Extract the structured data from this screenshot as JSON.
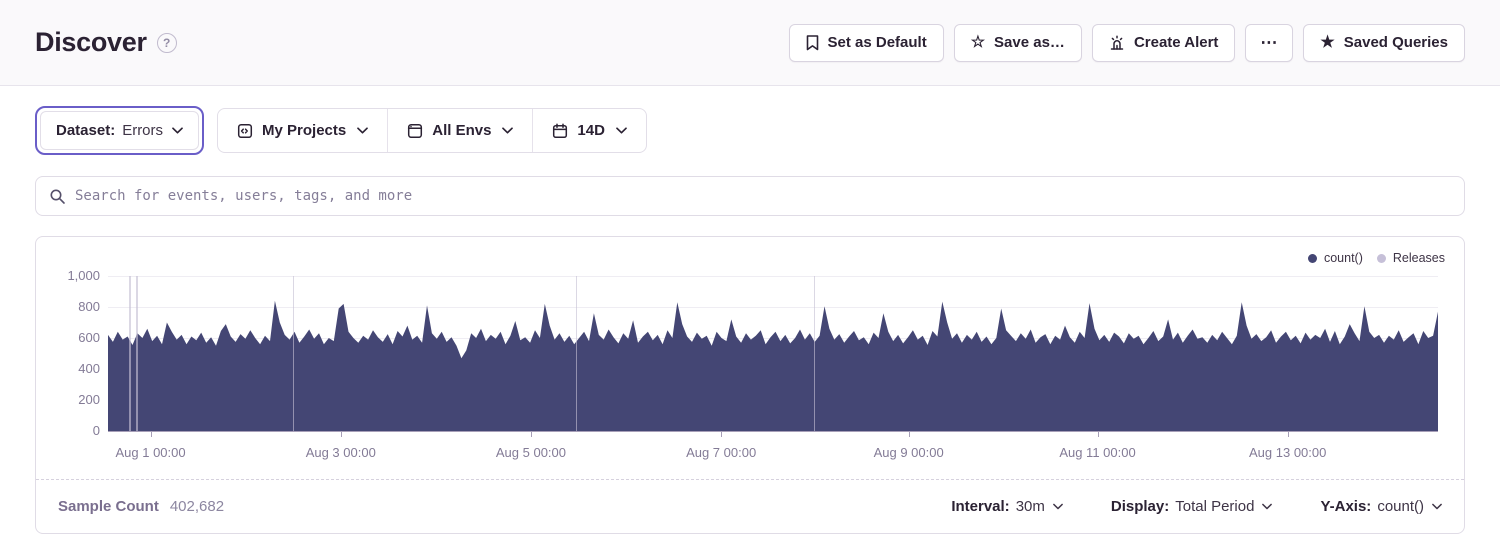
{
  "header": {
    "title": "Discover",
    "help_icon": "question-mark",
    "buttons": [
      {
        "label": "Set as Default",
        "icon": "bookmark-icon"
      },
      {
        "label": "Save as…",
        "icon": "star-outline-icon"
      },
      {
        "label": "Create Alert",
        "icon": "siren-icon"
      },
      {
        "label": "⋯",
        "icon": "ellipsis-icon"
      },
      {
        "label": "Saved Queries",
        "icon": "star-filled-icon"
      }
    ]
  },
  "filters": {
    "dataset": {
      "label": "Dataset:",
      "value": "Errors",
      "highlight_color": "#6a5ec8"
    },
    "projects": {
      "label": "My Projects",
      "icon": "project-icon"
    },
    "environments": {
      "label": "All Envs",
      "icon": "window-icon"
    },
    "date_range": {
      "label": "14D",
      "icon": "calendar-icon"
    }
  },
  "search": {
    "placeholder": "Search for events, users, tags, and more",
    "icon": "search-icon"
  },
  "chart_data": {
    "type": "area",
    "title": "",
    "xlabel": "",
    "ylabel": "",
    "ylim": [
      0,
      1000
    ],
    "grid": true,
    "legend_position": "top-right",
    "legend": [
      {
        "label": "count()",
        "color": "#444674"
      },
      {
        "label": "Releases",
        "color": "#c6c0d8"
      }
    ],
    "y_ticks": [
      "0",
      "200",
      "400",
      "600",
      "800",
      "1,000"
    ],
    "x_ticks": {
      "labels": [
        "Aug 1 00:00",
        "Aug 3 00:00",
        "Aug 5 00:00",
        "Aug 7 00:00",
        "Aug 9 00:00",
        "Aug 11 00:00",
        "Aug 13 00:00"
      ],
      "positions_pct": [
        3.2,
        17.5,
        31.8,
        46.1,
        60.2,
        74.4,
        88.7
      ]
    },
    "releases_pct": [
      1.6,
      2.1,
      13.9,
      35.2,
      53.1
    ],
    "series": [
      {
        "name": "count()",
        "color": "#444674",
        "values": [
          620,
          575,
          640,
          590,
          610,
          555,
          630,
          600,
          660,
          580,
          615,
          560,
          700,
          640,
          590,
          620,
          560,
          610,
          585,
          635,
          570,
          605,
          550,
          645,
          690,
          610,
          575,
          625,
          595,
          650,
          600,
          560,
          615,
          580,
          840,
          700,
          620,
          590,
          640,
          570,
          610,
          655,
          595,
          630,
          560,
          600,
          580,
          790,
          820,
          640,
          600,
          570,
          615,
          590,
          650,
          605,
          575,
          625,
          560,
          645,
          610,
          680,
          590,
          615,
          570,
          810,
          630,
          595,
          640,
          575,
          605,
          550,
          470,
          520,
          630,
          600,
          660,
          580,
          620,
          595,
          640,
          560,
          615,
          710,
          585,
          605,
          570,
          650,
          600,
          820,
          680,
          590,
          630,
          575,
          615,
          560,
          600,
          640,
          580,
          760,
          620,
          590,
          655,
          605,
          565,
          630,
          595,
          715,
          570,
          610,
          640,
          585,
          620,
          560,
          650,
          600,
          830,
          690,
          610,
          575,
          635,
          595,
          615,
          550,
          640,
          600,
          580,
          720,
          610,
          570,
          630,
          590,
          615,
          650,
          560,
          605,
          640,
          580,
          620,
          565,
          600,
          655,
          590,
          630,
          575,
          615,
          805,
          660,
          590,
          625,
          570,
          610,
          645,
          585,
          605,
          560,
          635,
          600,
          760,
          640,
          580,
          620,
          565,
          605,
          650,
          590,
          615,
          555,
          645,
          610,
          835,
          700,
          595,
          630,
          570,
          620,
          590,
          640,
          575,
          610,
          560,
          600,
          790,
          650,
          615,
          580,
          630,
          595,
          655,
          570,
          605,
          625,
          560,
          615,
          590,
          680,
          605,
          570,
          640,
          600,
          825,
          660,
          585,
          620,
          575,
          635,
          610,
          565,
          630,
          595,
          615,
          560,
          600,
          645,
          580,
          610,
          720,
          590,
          635,
          570,
          615,
          655,
          595,
          605,
          570,
          620,
          585,
          640,
          600,
          560,
          615,
          830,
          680,
          595,
          625,
          580,
          605,
          650,
          570,
          610,
          640,
          585,
          615,
          565,
          635,
          590,
          620,
          600,
          660,
          575,
          645,
          560,
          610,
          690,
          630,
          580,
          805,
          640,
          600,
          620,
          570,
          615,
          590,
          650,
          575,
          605,
          630,
          560,
          645,
          600,
          615,
          770
        ]
      }
    ]
  },
  "footer": {
    "sample_count_label": "Sample Count",
    "sample_count_value": "402,682",
    "controls": [
      {
        "label": "Interval:",
        "value": "30m"
      },
      {
        "label": "Display:",
        "value": "Total Period"
      },
      {
        "label": "Y-Axis:",
        "value": "count()"
      }
    ]
  }
}
